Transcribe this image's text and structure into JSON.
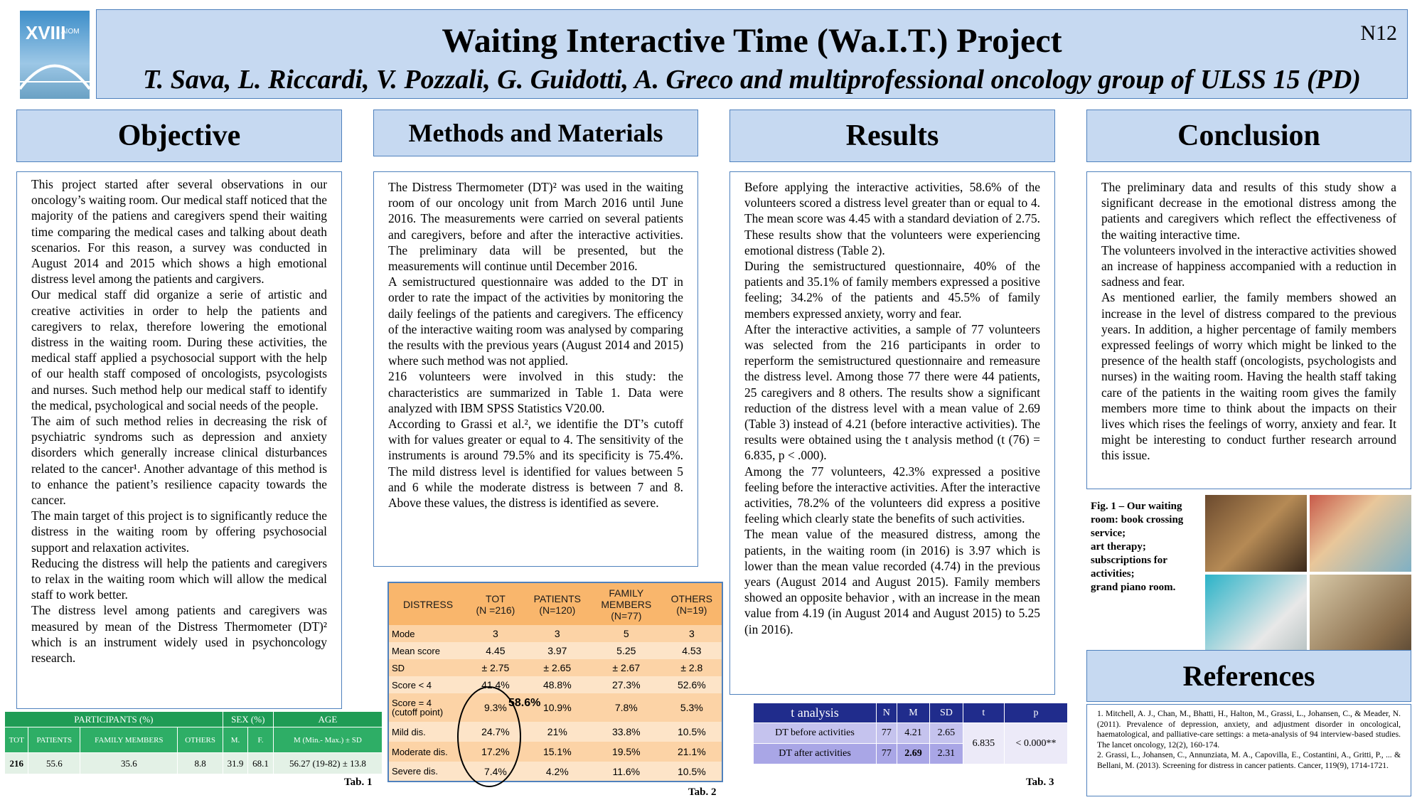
{
  "header": {
    "logo": [
      "XVIII",
      "AIOM"
    ],
    "title": "Waiting Interactive Time (Wa.I.T.) Project",
    "authors": "T. Sava, L. Riccardi, V. Pozzali, G. Guidotti, A. Greco and multiprofessional oncology group of ULSS 15 (PD)",
    "code": "N12"
  },
  "objective": {
    "heading": "Objective",
    "paragraphs": [
      "This project started after several observations in our oncology’s waiting room. Our medical staff noticed that the majority of the patiens and caregivers spend their waiting time comparing the medical cases and talking about death scenarios. For this reason, a survey was conducted in August 2014 and 2015 which shows a high emotional distress level among the patients and cargivers.",
      "Our medical staff did organize a serie of artistic and creative activities in order to help the patients and caregivers to relax, therefore lowering the emotional distress in the waiting room. During these activities, the medical staff applied a psychosocial support with the help of our health staff composed of oncologists, psycologists and nurses. Such method help our medical staff to identify the medical, psychological and social needs of the people.",
      "The aim of such method relies in decreasing the risk of psychiatric syndroms such as depression and anxiety disorders which generally increase clinical disturbances related to the cancer¹. Another advantage of this method is to enhance the patient’s resilience capacity towards the cancer.",
      "The main target of this project is to significantly reduce the distress in the waiting room by offering psychosocial support and relaxation activites.",
      "Reducing the distress will help the patients and caregivers to relax in the waiting room which will allow the medical staff to work better.",
      "The distress level among patients and caregivers was measured by mean of the Distress Thermometer (DT)² which is an instrument widely used in psychoncology research."
    ]
  },
  "methods": {
    "heading": "Methods and Materials",
    "paragraphs": [
      "The Distress Thermometer (DT)² was used in the waiting room of our oncology unit from March 2016 until June 2016. The measurements were carried on several patients and caregivers, before and after the interactive activities. The preliminary data will be presented, but the measurements will continue until December 2016.",
      "A semistructured questionnaire was added to the DT in order to rate the impact of the activities by monitoring the daily feelings of the patients and caregivers. The efficency of the interactive waiting room was analysed by comparing the results with the previous years (August 2014 and 2015) where such method was not applied.",
      "216 volunteers were involved in this study: the characteristics are summarized in Table 1. Data were analyzed with IBM SPSS Statistics V20.00.",
      "According to Grassi et al.², we identifie the DT’s cutoff with for values greater or equal to 4. The sensitivity of the instruments is around 79.5% and its specificity is 75.4%. The mild distress level is identified for values between 5 and 6 while the moderate distress is between 7 and 8. Above these values, the distress is identified as severe."
    ]
  },
  "results": {
    "heading": "Results",
    "paragraphs": [
      "Before applying the interactive activities, 58.6% of the volunteers scored a distress level greater than or equal to 4. The mean score was 4.45 with a standard deviation of 2.75. These results show that the volunteers were experiencing emotional distress (Table 2).",
      "During the semistructured questionnaire, 40% of the patients and 35.1% of family members expressed a positive feeling; 34.2% of the patients and 45.5% of family members expressed anxiety, worry and fear.",
      "After the interactive activities, a sample of 77 volunteers was selected from the 216 participants in order to reperform the semistructured questionnaire and remeasure the distress level. Among those 77 there were 44 patients, 25 caregivers and 8 others. The results show a significant reduction of the distress level with a mean value of 2.69 (Table 3) instead of 4.21 (before interactive activities). The results were obtained using the t analysis method (t (76) = 6.835, p < .000).",
      "Among the 77 volunteers, 42.3% expressed a positive feeling before the interactive activities. After the interactive activities, 78.2% of the volunteers did express a positive feeling which clearly state the benefits of such activities.",
      "The mean value of the measured distress, among the patients, in the waiting room (in 2016) is 3.97 which is lower than the mean value recorded (4.74) in the previous years (August 2014 and August 2015). Family members showed an opposite behavior , with an increase in the mean value from 4.19 (in August 2014 and August 2015) to 5.25 (in 2016)."
    ]
  },
  "conclusion": {
    "heading": "Conclusion",
    "paragraphs": [
      "The preliminary data and results of this study show a significant decrease in the emotional distress among the patients and caregivers which reflect the effectiveness of the waiting interactive time.",
      "The volunteers involved in the interactive activities showed an increase of happiness accompanied with a reduction in sadness and fear.",
      "As mentioned earlier, the family members showed an increase in the level of distress compared to the previous years. In addition, a higher percentage of family members expressed feelings of worry which might be linked to the presence of the health staff (oncologists, psychologists and nurses) in the waiting room. Having the health staff taking care of the patients in the waiting room gives the family members more time to think about the impacts on their lives which rises the feelings of worry, anxiety and fear. It might be interesting to conduct further research arround this issue."
    ]
  },
  "figure": {
    "caption": [
      "Fig. 1 – Our waiting room: book crossing service;",
      "art therapy;",
      "subscriptions for activities;",
      "grand piano room."
    ]
  },
  "references": {
    "heading": "References",
    "items": [
      "1. Mitchell, A. J., Chan, M., Bhatti, H., Halton, M., Grassi, L., Johansen, C., & Meader, N. (2011). Prevalence of depression, anxiety, and adjustment disorder in oncological, haematological, and palliative-care settings: a meta-analysis of 94 interview-based studies. The lancet oncology, 12(2), 160-174.",
      "2. Grassi, L., Johansen, C., Annunziata, M. A., Capovilla, E., Costantini, A., Gritti, P., ... & Bellani, M. (2013). Screening for distress in cancer patients. Cancer, 119(9), 1714-1721."
    ]
  },
  "table1": {
    "groups": [
      "PARTICIPANTS (%)",
      "SEX (%)",
      "AGE"
    ],
    "columns": [
      "TOT",
      "PATIENTS",
      "FAMILY MEMBERS",
      "OTHERS",
      "M.",
      "F.",
      "M (Min.- Max.) ± SD"
    ],
    "row": [
      "216",
      "55.6",
      "35.6",
      "8.8",
      "31.9",
      "68.1",
      "56.27 (19-82) ± 13.8"
    ],
    "caption": "Tab. 1"
  },
  "table2": {
    "columns": [
      "DISTRESS",
      "TOT\n(N =216)",
      "PATIENTS\n(N=120)",
      "FAMILY\nMEMBERS\n(N=77)",
      "OTHERS\n(N=19)"
    ],
    "rows": [
      [
        "Mode",
        "3",
        "3",
        "5",
        "3"
      ],
      [
        "Mean score",
        "4.45",
        "3.97",
        "5.25",
        "4.53"
      ],
      [
        "SD",
        "± 2.75",
        "± 2.65",
        "± 2.67",
        "± 2.8"
      ],
      [
        "Score < 4",
        "41.4%",
        "48.8%",
        "27.3%",
        "52.6%"
      ],
      [
        "Score = 4\n(cutoff point)",
        "9.3%",
        "10.9%",
        "7.8%",
        "5.3%"
      ],
      [
        "Mild dis.",
        "24.7%",
        "21%",
        "33.8%",
        "10.5%"
      ],
      [
        "Moderate dis.",
        "17.2%",
        "15.1%",
        "19.5%",
        "21.1%"
      ],
      [
        "Severe dis.",
        "7.4%",
        "4.2%",
        "11.6%",
        "10.5%"
      ]
    ],
    "annotation": "58.6%",
    "caption": "Tab. 2"
  },
  "table3": {
    "columns": [
      "t analysis",
      "N",
      "M",
      "SD",
      "t",
      "p"
    ],
    "rows": [
      [
        "DT before activities",
        "77",
        "4.21",
        "2.65"
      ],
      [
        "DT after activities",
        "77",
        "2.69",
        "2.31"
      ]
    ],
    "t": "6.835",
    "p": "< 0.000**",
    "caption": "Tab. 3"
  }
}
